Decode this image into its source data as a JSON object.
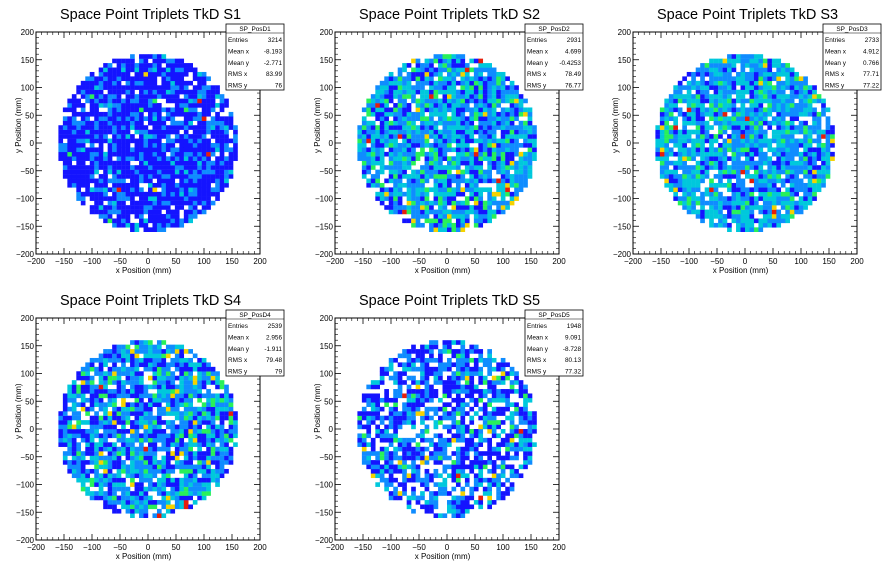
{
  "palette": {
    "low": "#1414ff",
    "mid_low": "#0f8cff",
    "mid": "#00c8dc",
    "mid_high": "#28f05a",
    "high": "#f5d200",
    "max": "#e61e0a"
  },
  "chart_data": [
    {
      "type": "heatmap",
      "title": "Space Point Triplets TkD S1",
      "xlabel": "x Position (mm)",
      "ylabel": "y Position (mm)",
      "xlim": [
        -200,
        200
      ],
      "ylim": [
        -200,
        200
      ],
      "xticks": [
        "−200",
        "−150",
        "−100",
        "−50",
        "0",
        "50",
        "100",
        "150",
        "200"
      ],
      "yticks": [
        "−200",
        "−150",
        "−100",
        "−50",
        "0",
        "50",
        "100",
        "150",
        "200"
      ],
      "region": "disk centred at origin, radius ≈ 160 mm, 8 mm bins",
      "stats": {
        "name": "SP_PosD1",
        "entries": "3214",
        "mean_x": "-8.193",
        "mean_y": "-2.771",
        "rms_x": "83.99",
        "rms_y": "76"
      },
      "seed": 11,
      "dens": 0.92,
      "w": [
        0.7,
        0.24,
        0.05,
        0.006,
        0.003,
        0.002
      ]
    },
    {
      "type": "heatmap",
      "title": "Space Point Triplets TkD S2",
      "xlabel": "x Position (mm)",
      "ylabel": "y Position (mm)",
      "xlim": [
        -200,
        200
      ],
      "ylim": [
        -200,
        200
      ],
      "xticks": [
        "−200",
        "−150",
        "−100",
        "−50",
        "0",
        "50",
        "100",
        "150",
        "200"
      ],
      "yticks": [
        "−200",
        "−150",
        "−100",
        "−50",
        "0",
        "50",
        "100",
        "150",
        "200"
      ],
      "region": "disk centred at origin, radius ≈ 160 mm, 8 mm bins",
      "stats": {
        "name": "SP_PosD2",
        "entries": "2931",
        "mean_x": "4.699",
        "mean_y": "-0.4253",
        "rms_x": "78.49",
        "rms_y": "76.77"
      },
      "seed": 23,
      "dens": 0.88,
      "w": [
        0.2,
        0.36,
        0.3,
        0.11,
        0.02,
        0.01
      ]
    },
    {
      "type": "heatmap",
      "title": "Space Point Triplets TkD S3",
      "xlabel": "x Position (mm)",
      "ylabel": "y Position (mm)",
      "xlim": [
        -200,
        200
      ],
      "ylim": [
        -200,
        200
      ],
      "xticks": [
        "−200",
        "−150",
        "−100",
        "−50",
        "0",
        "50",
        "100",
        "150",
        "200"
      ],
      "yticks": [
        "−200",
        "−150",
        "−100",
        "−50",
        "0",
        "50",
        "100",
        "150",
        "200"
      ],
      "region": "disk centred at origin, radius ≈ 160 mm, 8 mm bins",
      "stats": {
        "name": "SP_PosD3",
        "entries": "2733",
        "mean_x": "4.912",
        "mean_y": "0.766",
        "rms_x": "77.71",
        "rms_y": "77.22"
      },
      "seed": 37,
      "dens": 0.88,
      "w": [
        0.14,
        0.38,
        0.36,
        0.09,
        0.02,
        0.01
      ]
    },
    {
      "type": "heatmap",
      "title": "Space Point Triplets TkD S4",
      "xlabel": "x Position (mm)",
      "ylabel": "y Position (mm)",
      "xlim": [
        -200,
        200
      ],
      "ylim": [
        -200,
        200
      ],
      "xticks": [
        "−200",
        "−150",
        "−100",
        "−50",
        "0",
        "50",
        "100",
        "150",
        "200"
      ],
      "yticks": [
        "−200",
        "−150",
        "−100",
        "−50",
        "0",
        "50",
        "100",
        "150",
        "200"
      ],
      "region": "disk centred at origin, radius ≈ 160 mm, 8 mm bins",
      "stats": {
        "name": "SP_PosD4",
        "entries": "2539",
        "mean_x": "2.956",
        "mean_y": "-1.911",
        "rms_x": "79.48",
        "rms_y": "79"
      },
      "seed": 53,
      "dens": 0.86,
      "w": [
        0.28,
        0.36,
        0.24,
        0.08,
        0.03,
        0.01
      ]
    },
    {
      "type": "heatmap",
      "title": "Space Point Triplets TkD S5",
      "xlabel": "x Position (mm)",
      "ylabel": "y Position (mm)",
      "xlim": [
        -200,
        200
      ],
      "ylim": [
        -200,
        200
      ],
      "xticks": [
        "−200",
        "−150",
        "−100",
        "−50",
        "0",
        "50",
        "100",
        "150",
        "200"
      ],
      "yticks": [
        "−200",
        "−150",
        "−100",
        "−50",
        "0",
        "50",
        "100",
        "150",
        "200"
      ],
      "region": "disk centred at origin, radius ≈ 160 mm, 8 mm bins",
      "stats": {
        "name": "SP_PosD5",
        "entries": "1948",
        "mean_x": "9.091",
        "mean_y": "-8.728",
        "rms_x": "80.13",
        "rms_y": "77.32"
      },
      "seed": 71,
      "dens": 0.72,
      "w": [
        0.44,
        0.34,
        0.16,
        0.04,
        0.015,
        0.005
      ]
    }
  ],
  "stat_labels": {
    "entries": "Entries",
    "mean_x": "Mean x",
    "mean_y": "Mean y",
    "rms_x": "RMS x",
    "rms_y": "RMS y"
  }
}
